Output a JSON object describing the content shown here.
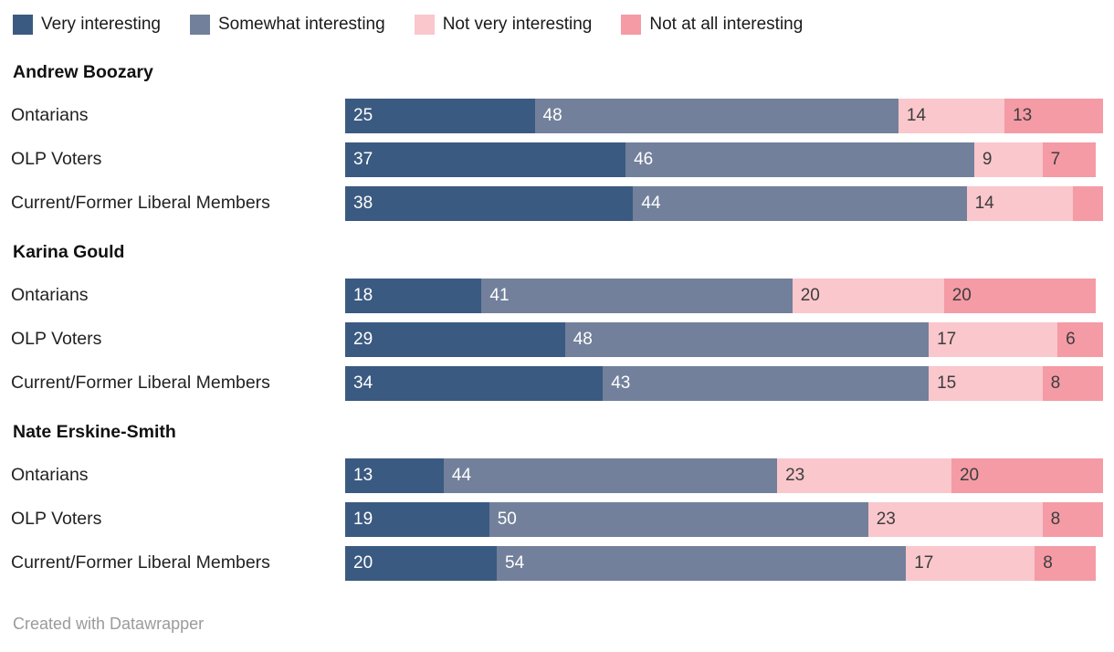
{
  "legend": {
    "items": [
      {
        "label": "Very interesting",
        "color": "#3b5a81"
      },
      {
        "label": "Somewhat interesting",
        "color": "#72809b"
      },
      {
        "label": "Not very interesting",
        "color": "#f9c7cc"
      },
      {
        "label": "Not at all interesting",
        "color": "#f49ba6"
      }
    ]
  },
  "chart_data": {
    "type": "bar",
    "stacked": true,
    "orientation": "horizontal",
    "xlim": [
      0,
      100
    ],
    "series_names": [
      "Very interesting",
      "Somewhat interesting",
      "Not very interesting",
      "Not at all interesting"
    ],
    "series_colors": [
      "#3b5a81",
      "#72809b",
      "#f9c7cc",
      "#f49ba6"
    ],
    "label_text_colors": [
      "light",
      "light",
      "dark",
      "dark"
    ],
    "groups": [
      {
        "name": "Andrew Boozary",
        "rows": [
          {
            "label": "Ontarians",
            "values": [
              25,
              48,
              14,
              13
            ],
            "value_labels": [
              "25",
              "48",
              "14",
              "13"
            ]
          },
          {
            "label": "OLP Voters",
            "values": [
              37,
              46,
              9,
              7
            ],
            "value_labels": [
              "37",
              "46",
              "9",
              "7"
            ]
          },
          {
            "label": "Current/Former Liberal Members",
            "values": [
              38,
              44,
              14,
              4
            ],
            "value_labels": [
              "38",
              "44",
              "14",
              ""
            ]
          }
        ]
      },
      {
        "name": "Karina Gould",
        "rows": [
          {
            "label": "Ontarians",
            "values": [
              18,
              41,
              20,
              20
            ],
            "value_labels": [
              "18",
              "41",
              "20",
              "20"
            ]
          },
          {
            "label": "OLP Voters",
            "values": [
              29,
              48,
              17,
              6
            ],
            "value_labels": [
              "29",
              "48",
              "17",
              "6"
            ]
          },
          {
            "label": "Current/Former Liberal Members",
            "values": [
              34,
              43,
              15,
              8
            ],
            "value_labels": [
              "34",
              "43",
              "15",
              "8"
            ]
          }
        ]
      },
      {
        "name": "Nate Erskine-Smith",
        "rows": [
          {
            "label": "Ontarians",
            "values": [
              13,
              44,
              23,
              20
            ],
            "value_labels": [
              "13",
              "44",
              "23",
              "20"
            ]
          },
          {
            "label": "OLP Voters",
            "values": [
              19,
              50,
              23,
              8
            ],
            "value_labels": [
              "19",
              "50",
              "23",
              "8"
            ]
          },
          {
            "label": "Current/Former Liberal Members",
            "values": [
              20,
              54,
              17,
              8
            ],
            "value_labels": [
              "20",
              "54",
              "17",
              "8"
            ]
          }
        ]
      }
    ]
  },
  "footer": {
    "credit": "Created with Datawrapper"
  }
}
